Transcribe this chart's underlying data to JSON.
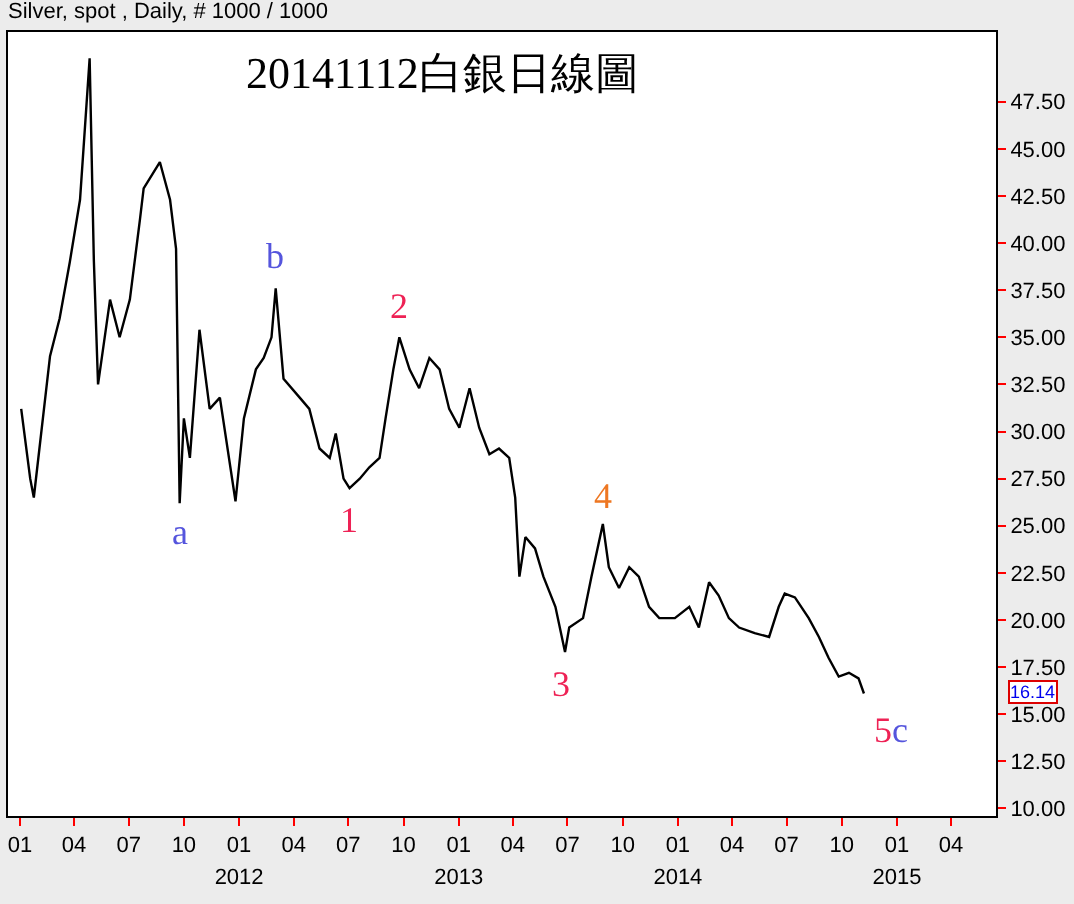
{
  "chart_data": {
    "type": "line",
    "title": "20141112白銀日線圖",
    "annotations": [
      "Silver, spot , Daily, # 1000 / 1000",
      {
        "text": "a",
        "x": "2011-09-24",
        "y": 26.2
      },
      {
        "text": "b",
        "x": "2012-03-02",
        "y": 37.6
      },
      {
        "text": "1",
        "x": "2012-07-03",
        "y": 27.0
      },
      {
        "text": "2",
        "x": "2012-09-24",
        "y": 35.0
      },
      {
        "text": "3",
        "x": "2013-06-27",
        "y": 18.3
      },
      {
        "text": "4",
        "x": "2013-08-29",
        "y": 25.1
      },
      {
        "text": "5c",
        "x": "2014-11-07",
        "y": 16.1
      },
      "16.14"
    ],
    "x": [
      "2011-01-03",
      "2011-01-18",
      "2011-01-24",
      "2011-02-20",
      "2011-03-08",
      "2011-03-25",
      "2011-04-11",
      "2011-04-27",
      "2011-05-04",
      "2011-05-11",
      "2011-05-31",
      "2011-06-16",
      "2011-07-03",
      "2011-07-20",
      "2011-07-26",
      "2011-08-22",
      "2011-09-08",
      "2011-09-18",
      "2011-09-24",
      "2011-10-01",
      "2011-10-11",
      "2011-10-27",
      "2011-11-13",
      "2011-11-30",
      "2011-12-26",
      "2012-01-09",
      "2012-01-29",
      "2012-02-11",
      "2012-02-24",
      "2012-03-02",
      "2012-03-15",
      "2012-04-11",
      "2012-04-27",
      "2012-05-14",
      "2012-05-31",
      "2012-06-10",
      "2012-06-23",
      "2012-07-03",
      "2012-07-20",
      "2012-08-05",
      "2012-08-22",
      "2012-09-01",
      "2012-09-14",
      "2012-09-24",
      "2012-10-11",
      "2012-10-27",
      "2012-11-13",
      "2012-11-30",
      "2012-12-16",
      "2013-01-02",
      "2013-01-19",
      "2013-02-04",
      "2013-02-21",
      "2013-03-09",
      "2013-03-26",
      "2013-04-05",
      "2013-04-12",
      "2013-04-22",
      "2013-05-08",
      "2013-05-22",
      "2013-06-11",
      "2013-06-27",
      "2013-07-04",
      "2013-07-27",
      "2013-08-10",
      "2013-08-29",
      "2013-09-08",
      "2013-09-25",
      "2013-10-12",
      "2013-10-28",
      "2013-11-14",
      "2013-12-01",
      "2013-12-27",
      "2014-01-20",
      "2014-02-05",
      "2014-02-22",
      "2014-03-10",
      "2014-03-27",
      "2014-04-13",
      "2014-05-09",
      "2014-06-02",
      "2014-06-18",
      "2014-06-28",
      "2014-07-15",
      "2014-08-07",
      "2014-08-24",
      "2014-09-09",
      "2014-09-26",
      "2014-10-13",
      "2014-10-29",
      "2014-11-07"
    ],
    "series": [
      {
        "color": "#000000",
        "values": [
          31.2,
          27.5,
          26.5,
          34.0,
          36.0,
          39.0,
          42.3,
          49.8,
          39.1,
          32.5,
          37.0,
          35.0,
          37.0,
          41.3,
          42.9,
          44.3,
          42.3,
          39.7,
          26.2,
          30.7,
          28.6,
          35.4,
          31.2,
          31.8,
          26.3,
          30.7,
          33.3,
          33.9,
          35.0,
          37.6,
          32.8,
          31.8,
          31.2,
          29.1,
          28.6,
          29.9,
          27.5,
          27.0,
          27.5,
          28.1,
          28.6,
          30.7,
          33.3,
          35.0,
          33.3,
          32.3,
          33.9,
          33.3,
          31.2,
          30.2,
          32.3,
          30.2,
          28.8,
          29.1,
          28.6,
          26.5,
          22.3,
          24.4,
          23.8,
          22.3,
          20.7,
          18.3,
          19.6,
          20.1,
          22.3,
          25.1,
          22.8,
          21.7,
          22.8,
          22.3,
          20.7,
          20.1,
          20.1,
          20.7,
          19.6,
          22.0,
          21.3,
          20.1,
          19.6,
          19.3,
          19.1,
          20.7,
          21.4,
          21.2,
          20.1,
          19.1,
          18.0,
          17.0,
          17.2,
          16.9,
          16.1
        ]
      }
    ],
    "xlim": [
      "2010-12-12",
      "2015-06-15"
    ],
    "xticks": [
      {
        "value": "2011-01-01",
        "label": "01"
      },
      {
        "value": "2011-04-01",
        "label": "04"
      },
      {
        "value": "2011-07-01",
        "label": "07"
      },
      {
        "value": "2011-10-01",
        "label": "10"
      },
      {
        "value": "2012-01-01",
        "label": "01"
      },
      {
        "value": "2012-04-01",
        "label": "04"
      },
      {
        "value": "2012-07-01",
        "label": "07"
      },
      {
        "value": "2012-10-01",
        "label": "10"
      },
      {
        "value": "2013-01-01",
        "label": "01"
      },
      {
        "value": "2013-04-01",
        "label": "04"
      },
      {
        "value": "2013-07-01",
        "label": "07"
      },
      {
        "value": "2013-10-01",
        "label": "10"
      },
      {
        "value": "2014-01-01",
        "label": "01"
      },
      {
        "value": "2014-04-01",
        "label": "04"
      },
      {
        "value": "2014-07-01",
        "label": "07"
      },
      {
        "value": "2014-10-01",
        "label": "10"
      },
      {
        "value": "2015-01-01",
        "label": "01"
      },
      {
        "value": "2015-04-01",
        "label": "04"
      }
    ],
    "x2lim": [
      "2010-12-12",
      "2015-06-15"
    ],
    "x2ticks": [
      {
        "value": "2012-01-01",
        "label": "2012"
      },
      {
        "value": "2013-01-01",
        "label": "2013"
      },
      {
        "value": "2014-01-01",
        "label": "2014"
      },
      {
        "value": "2015-01-01",
        "label": "2015"
      }
    ],
    "ylim": [
      9.6,
      51.2
    ],
    "yticks": [
      {
        "value": 10,
        "label": "10.00"
      },
      {
        "value": 12.5,
        "label": "12.50"
      },
      {
        "value": 15,
        "label": "15.00"
      },
      {
        "value": 17.5,
        "label": "17.50"
      },
      {
        "value": 20,
        "label": "20.00"
      },
      {
        "value": 22.5,
        "label": "22.50"
      },
      {
        "value": 25,
        "label": "25.00"
      },
      {
        "value": 27.5,
        "label": "27.50"
      },
      {
        "value": 30,
        "label": "30.00"
      },
      {
        "value": 32.5,
        "label": "32.50"
      },
      {
        "value": 35,
        "label": "35.00"
      },
      {
        "value": 37.5,
        "label": "37.50"
      },
      {
        "value": 40,
        "label": "40.00"
      },
      {
        "value": 42.5,
        "label": "42.50"
      },
      {
        "value": 45,
        "label": "45.00"
      },
      {
        "value": 47.5,
        "label": "47.50"
      }
    ],
    "marker": "none",
    "line_style": "solid"
  }
}
